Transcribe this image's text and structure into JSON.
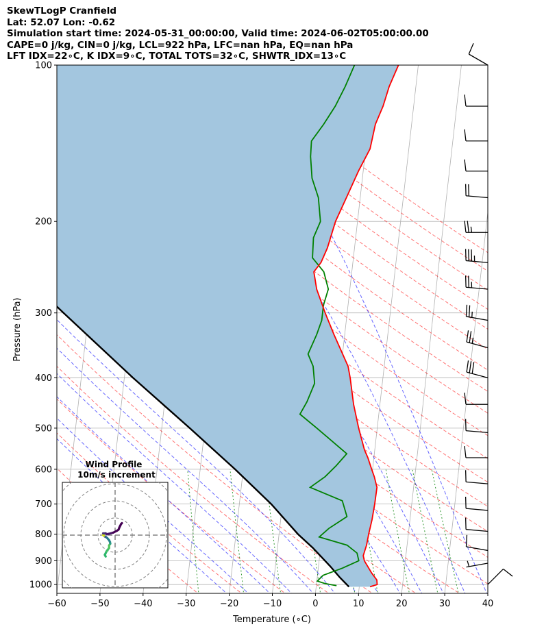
{
  "header": {
    "line1": "SkewTLogP Cranfield",
    "line2": "Lat: 52.07   Lon: -0.62",
    "line3": "Simulation start time: 2024-05-31_00:00:00, Valid time: 2024-06-02T05:00:00.00",
    "line4": "CAPE=0 j/kg, CIN=0 j/kg, LCL=922 hPa, LFC=nan hPa, EQ=nan hPa",
    "line5": "LFT IDX=22∘C, K IDX=9∘C, TOTAL TOTS=32∘C, SHWTR_IDX=13∘C"
  },
  "chart_data": {
    "type": "skewt",
    "xlabel": "Temperature (∘C)",
    "ylabel": "Pressure (hPa)",
    "xlim": [
      -60,
      40
    ],
    "ylim": [
      1040,
      100
    ],
    "y_scale": "log",
    "grid": true,
    "x_ticks": [
      "−60",
      "−50",
      "−40",
      "−30",
      "−20",
      "−10",
      "0",
      "10",
      "20",
      "30",
      "40"
    ],
    "x_tick_values": [
      -60,
      -50,
      -40,
      -30,
      -20,
      -10,
      0,
      10,
      20,
      30,
      40
    ],
    "y_ticks": [
      "100",
      "200",
      "300",
      "400",
      "500",
      "600",
      "700",
      "800",
      "900",
      "1000"
    ],
    "y_tick_values": [
      100,
      200,
      300,
      400,
      500,
      600,
      700,
      800,
      900,
      1000
    ],
    "series": [
      {
        "name": "",
        "role": "temperature",
        "color": "#ff0000",
        "points": [
          [
            1010,
            12.5
          ],
          [
            1000,
            14.1
          ],
          [
            980,
            13.9
          ],
          [
            950,
            12.5
          ],
          [
            900,
            10.5
          ],
          [
            880,
            10.1
          ],
          [
            840,
            10.6
          ],
          [
            800,
            10.8
          ],
          [
            750,
            11.2
          ],
          [
            700,
            11.4
          ],
          [
            650,
            11.5
          ],
          [
            620,
            10.6
          ],
          [
            600,
            9.8
          ],
          [
            570,
            8.6
          ],
          [
            550,
            7.6
          ],
          [
            500,
            5.7
          ],
          [
            450,
            3.9
          ],
          [
            400,
            2.4
          ],
          [
            380,
            1.6
          ],
          [
            330,
            -2.5
          ],
          [
            300,
            -5.1
          ],
          [
            270,
            -7.7
          ],
          [
            250,
            -8.8
          ],
          [
            240,
            -7.4
          ],
          [
            225,
            -6.3
          ],
          [
            200,
            -5.1
          ],
          [
            180,
            -3.2
          ],
          [
            160,
            -1.1
          ],
          [
            145,
            1.0
          ],
          [
            130,
            1.6
          ],
          [
            120,
            2.9
          ],
          [
            110,
            3.8
          ],
          [
            100,
            5.4
          ]
        ]
      },
      {
        "name": "",
        "role": "dewpoint",
        "color": "#008000",
        "points": [
          [
            1005,
            4.7
          ],
          [
            1000,
            3.2
          ],
          [
            995,
            1.8
          ],
          [
            985,
            0.1
          ],
          [
            960,
            1.3
          ],
          [
            930,
            5.6
          ],
          [
            900,
            9.2
          ],
          [
            870,
            8.6
          ],
          [
            840,
            6.1
          ],
          [
            810,
            -0.6
          ],
          [
            780,
            1.4
          ],
          [
            740,
            5.3
          ],
          [
            690,
            3.8
          ],
          [
            650,
            -4.0
          ],
          [
            620,
            -0.8
          ],
          [
            590,
            1.5
          ],
          [
            560,
            3.6
          ],
          [
            500,
            -4.0
          ],
          [
            470,
            -8.3
          ],
          [
            445,
            -7.0
          ],
          [
            410,
            -5.7
          ],
          [
            380,
            -6.5
          ],
          [
            360,
            -8.0
          ],
          [
            330,
            -6.5
          ],
          [
            310,
            -5.7
          ],
          [
            290,
            -5.7
          ],
          [
            270,
            -5.0
          ],
          [
            250,
            -6.5
          ],
          [
            235,
            -9.5
          ],
          [
            215,
            -9.8
          ],
          [
            200,
            -8.6
          ],
          [
            180,
            -9.7
          ],
          [
            165,
            -11.7
          ],
          [
            150,
            -12.6
          ],
          [
            140,
            -12.8
          ],
          [
            130,
            -10.4
          ],
          [
            120,
            -8.2
          ],
          [
            110,
            -6.4
          ],
          [
            100,
            -4.8
          ]
        ]
      },
      {
        "name": "",
        "role": "parcel",
        "color": "#000000",
        "points": [
          [
            1010,
            7.6
          ],
          [
            970,
            5.3
          ],
          [
            922,
            2.7
          ],
          [
            850,
            -1.8
          ],
          [
            800,
            -5.6
          ],
          [
            700,
            -12.6
          ],
          [
            600,
            -21.9
          ],
          [
            500,
            -33.5
          ],
          [
            400,
            -48.0
          ],
          [
            300,
            -65.8
          ],
          [
            250,
            -77.0
          ],
          [
            200,
            -89.6
          ],
          [
            150,
            -104.0
          ],
          [
            100,
            -123.0
          ]
        ]
      }
    ],
    "shaded_region": {
      "between": [
        "temperature",
        "parcel"
      ],
      "color": "#a3c6df"
    },
    "wind_barbs": [
      {
        "p": 100,
        "direction": 300,
        "speed": 10
      },
      {
        "p": 120,
        "direction": 270,
        "speed": 10
      },
      {
        "p": 140,
        "direction": 270,
        "speed": 10
      },
      {
        "p": 160,
        "direction": 270,
        "speed": 10
      },
      {
        "p": 180,
        "direction": 275,
        "speed": 20
      },
      {
        "p": 210,
        "direction": 270,
        "speed": 25
      },
      {
        "p": 240,
        "direction": 275,
        "speed": 35
      },
      {
        "p": 270,
        "direction": 275,
        "speed": 25
      },
      {
        "p": 310,
        "direction": 280,
        "speed": 25
      },
      {
        "p": 350,
        "direction": 285,
        "speed": 25
      },
      {
        "p": 400,
        "direction": 285,
        "speed": 30
      },
      {
        "p": 450,
        "direction": 270,
        "speed": 10
      },
      {
        "p": 510,
        "direction": 275,
        "speed": 10
      },
      {
        "p": 570,
        "direction": 270,
        "speed": 10
      },
      {
        "p": 640,
        "direction": 275,
        "speed": 10
      },
      {
        "p": 720,
        "direction": 275,
        "speed": 10
      },
      {
        "p": 790,
        "direction": 275,
        "speed": 10
      },
      {
        "p": 860,
        "direction": 280,
        "speed": 10
      },
      {
        "p": 910,
        "direction": 260,
        "speed": 5
      },
      {
        "p": 1000,
        "direction": 45,
        "speed": 10
      }
    ],
    "hodograph": {
      "title": "Wind Profile",
      "subtitle": "10m/s increment",
      "ring_step_ms": 10,
      "trace_uv": [
        [
          -5.5,
          -12.5
        ],
        [
          -6.0,
          -11.5
        ],
        [
          -5.0,
          -9.5
        ],
        [
          -3.5,
          -7.5
        ],
        [
          -3.5,
          -6.0
        ],
        [
          -2.8,
          -5.0
        ],
        [
          -3.0,
          -4.0
        ],
        [
          -3.5,
          -3.0
        ],
        [
          -4.5,
          -1.8
        ],
        [
          -5.5,
          -1.0
        ],
        [
          -6.0,
          -0.8
        ],
        [
          -6.5,
          -0.4
        ],
        [
          -7.0,
          0.0
        ],
        [
          -6.5,
          0.5
        ],
        [
          -7.0,
          1.0
        ],
        [
          -5.5,
          1.0
        ],
        [
          -5.0,
          0.5
        ],
        [
          -3.5,
          0.8
        ],
        [
          -1.0,
          1.5
        ],
        [
          1.0,
          2.5
        ],
        [
          2.0,
          3.2
        ],
        [
          2.5,
          4.5
        ],
        [
          3.0,
          5.5
        ],
        [
          3.5,
          6.5
        ],
        [
          4.0,
          7.0
        ]
      ],
      "colors": [
        "#2db76c",
        "#2db76c",
        "#42c069",
        "#4cc45e",
        "#56c558",
        "#2b9f88",
        "#2b8a8c",
        "#26828e",
        "#2a788e",
        "#2d6e8e",
        "#3e4a89",
        "#bddf26",
        "#dde318",
        "#c8e020",
        "#47337a",
        "#482575",
        "#481a6c",
        "#481467",
        "#440154",
        "#440154",
        "#440154",
        "#440154",
        "#440154",
        "#440154"
      ]
    }
  }
}
